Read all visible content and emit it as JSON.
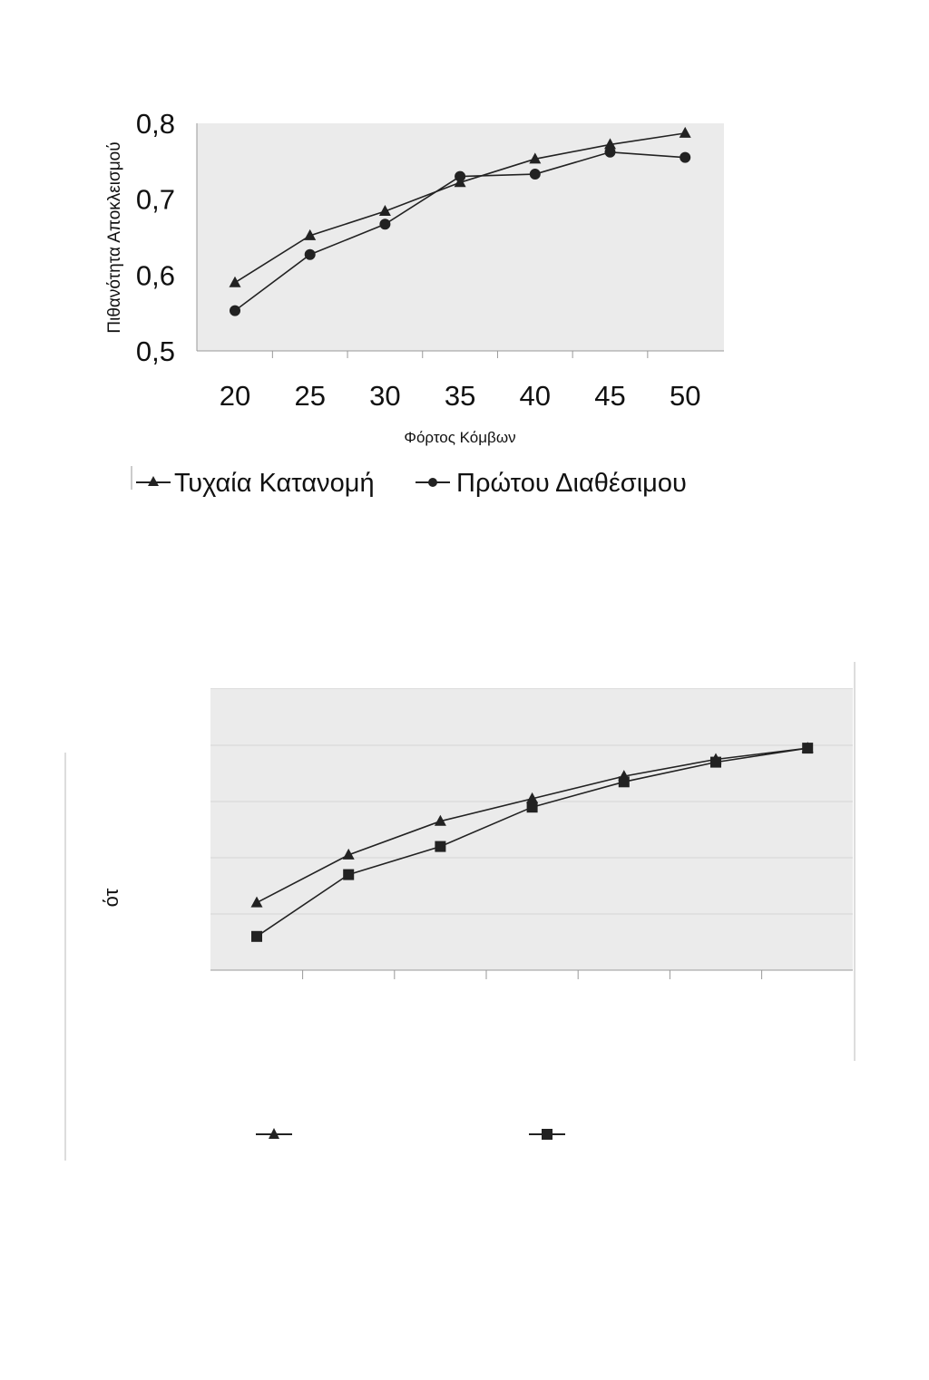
{
  "chart_data": [
    {
      "type": "line",
      "xlabel": "Φόρτος Κόμβων",
      "ylabel": "Πιθανότητα Αποκλεισμού",
      "x": [
        20,
        25,
        30,
        35,
        40,
        45,
        50
      ],
      "x_tick_labels": [
        "20",
        "25",
        "30",
        "35",
        "40",
        "45",
        "50"
      ],
      "ylim": [
        0.5,
        0.8
      ],
      "y_ticks": [
        0.5,
        0.6,
        0.7,
        0.8
      ],
      "y_tick_labels": [
        "0,5",
        "0,6",
        "0,7",
        "0,8"
      ],
      "grid": false,
      "legend_position": "bottom",
      "series": [
        {
          "name": "Τυχαία Κατανομή",
          "marker": "triangle",
          "color": "#222222",
          "values": [
            0.59,
            0.652,
            0.684,
            0.722,
            0.753,
            0.772,
            0.787
          ]
        },
        {
          "name": "Πρώτου Διαθέσιμου",
          "marker": "circle",
          "color": "#222222",
          "values": [
            0.553,
            0.627,
            0.667,
            0.73,
            0.733,
            0.762,
            0.755
          ]
        }
      ]
    },
    {
      "type": "line",
      "ylabel_fragment": "ότ",
      "grid": true,
      "legend_position": "bottom",
      "x": [
        1,
        2,
        3,
        4,
        5,
        6,
        7
      ],
      "ylim": [
        0,
        5
      ],
      "series": [
        {
          "marker": "triangle",
          "color": "#222222",
          "values": [
            1.2,
            2.05,
            2.65,
            3.05,
            3.45,
            3.75,
            3.95
          ]
        },
        {
          "marker": "square",
          "color": "#222222",
          "values": [
            0.6,
            1.7,
            2.2,
            2.9,
            3.35,
            3.7,
            3.95
          ]
        }
      ]
    }
  ]
}
